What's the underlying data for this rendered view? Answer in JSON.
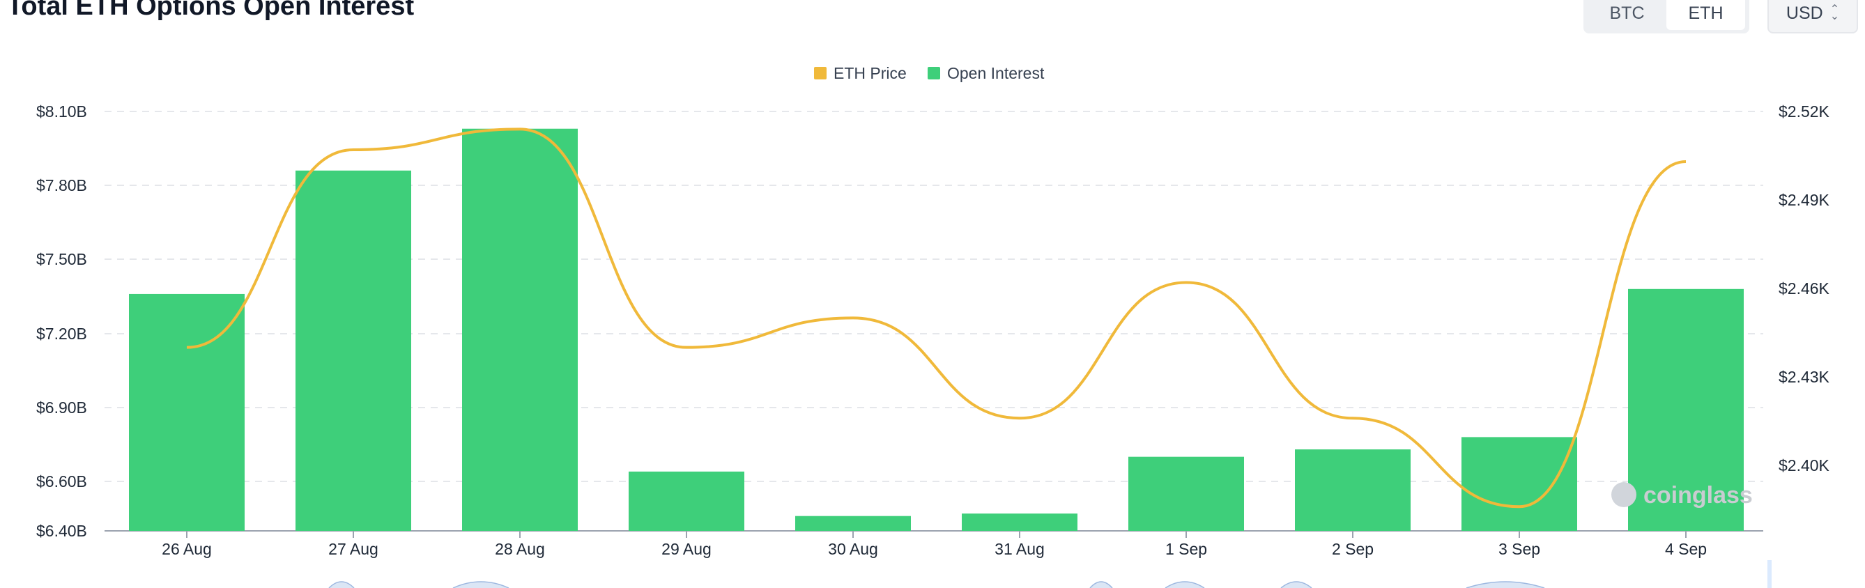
{
  "header": {
    "title": "Total ETH Options Open Interest",
    "asset_tabs": [
      {
        "label": "BTC",
        "active": false
      },
      {
        "label": "ETH",
        "active": true
      }
    ],
    "currency": "USD"
  },
  "watermark": "coinglass",
  "colors": {
    "bar": "#3ecf7a",
    "price_line": "#f0b93a",
    "grid": "#e5e7eb"
  },
  "chart_data": {
    "type": "bar",
    "categories": [
      "26 Aug",
      "27 Aug",
      "28 Aug",
      "29 Aug",
      "30 Aug",
      "31 Aug",
      "1 Sep",
      "2 Sep",
      "3 Sep",
      "4 Sep"
    ],
    "series": [
      {
        "name": "Open Interest",
        "type": "bar",
        "axis": "left",
        "values": [
          7.36,
          7.86,
          8.03,
          6.64,
          6.46,
          6.47,
          6.7,
          6.73,
          6.78,
          7.38
        ]
      },
      {
        "name": "ETH Price",
        "type": "line",
        "axis": "right",
        "values": [
          2440,
          2507,
          2514,
          2440,
          2450,
          2416,
          2462,
          2416,
          2386,
          2503
        ]
      }
    ],
    "legend": [
      "ETH Price",
      "Open Interest"
    ],
    "legend_position": "top-center",
    "y_left": {
      "ticks": [
        "$8.10B",
        "$7.80B",
        "$7.50B",
        "$7.20B",
        "$6.90B",
        "$6.60B",
        "$6.40B"
      ],
      "tick_values": [
        8.1,
        7.8,
        7.5,
        7.2,
        6.9,
        6.6,
        6.4
      ],
      "range": [
        6.4,
        8.1
      ]
    },
    "y_right": {
      "ticks": [
        "$2.52K",
        "$2.49K",
        "$2.46K",
        "$2.43K",
        "$2.40K"
      ],
      "tick_values": [
        2520,
        2490,
        2460,
        2430,
        2400
      ],
      "range": [
        2377,
        2520
      ]
    },
    "grid": true
  }
}
